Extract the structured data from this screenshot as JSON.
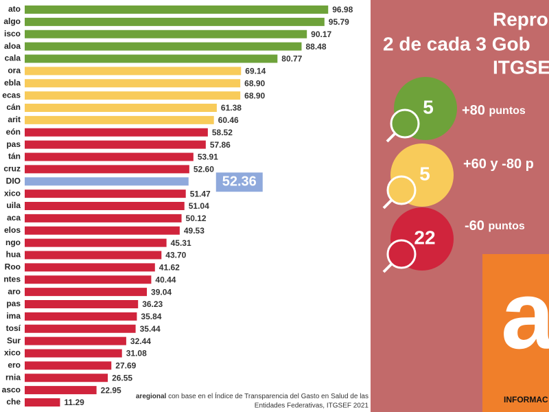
{
  "chart_data": {
    "type": "hbar",
    "categories": [
      "ato",
      "algo",
      "isco",
      "aloa",
      "cala",
      "ora",
      "ebla",
      "ecas",
      "cán",
      "arit",
      "eón",
      "pas",
      "tán",
      "cruz",
      "DIO",
      "xico",
      "uila",
      "aca",
      "elos",
      "ngo",
      "hua",
      "Roo",
      "ntes",
      "aro",
      "pas",
      "ima",
      "tosí",
      "Sur",
      "xico",
      "ero",
      "rnia",
      "asco",
      "che"
    ],
    "values": [
      96.98,
      95.79,
      90.17,
      88.48,
      80.77,
      69.14,
      68.9,
      68.9,
      61.38,
      60.46,
      58.52,
      57.86,
      53.91,
      52.6,
      52.36,
      51.47,
      51.04,
      50.12,
      49.53,
      45.31,
      43.7,
      41.62,
      40.44,
      39.04,
      36.23,
      35.84,
      35.44,
      32.44,
      31.08,
      27.69,
      26.55,
      22.95,
      11.29
    ],
    "value_labels": [
      "96.98",
      "95.79",
      "90.17",
      "88.48",
      "80.77",
      "69.14",
      "68.90",
      "68.90",
      "61.38",
      "60.46",
      "58.52",
      "57.86",
      "53.91",
      "52.60",
      "52.36",
      "51.47",
      "51.04",
      "50.12",
      "49.53",
      "45.31",
      "43.70",
      "41.62",
      "40.44",
      "39.04",
      "36.23",
      "35.84",
      "35.44",
      "32.44",
      "31.08",
      "27.69",
      "26.55",
      "22.95",
      "11.29"
    ],
    "colors": [
      "#6ea23a",
      "#6ea23a",
      "#6ea23a",
      "#6ea23a",
      "#6ea23a",
      "#f8cb5a",
      "#f8cb5a",
      "#f8cb5a",
      "#f8cb5a",
      "#f8cb5a",
      "#d0243c",
      "#d0243c",
      "#d0243c",
      "#d0243c",
      "#8fa9dc",
      "#d0243c",
      "#d0243c",
      "#d0243c",
      "#d0243c",
      "#d0243c",
      "#d0243c",
      "#d0243c",
      "#d0243c",
      "#d0243c",
      "#d0243c",
      "#d0243c",
      "#d0243c",
      "#d0243c",
      "#d0243c",
      "#d0243c",
      "#d0243c",
      "#d0243c",
      "#d0243c"
    ],
    "highlight": 14,
    "source": [
      "aregional",
      "con base en el Índice de Transparencia del Gasto en Salud de las",
      "Entidades Federativas, ITGSEF 2021"
    ]
  },
  "panel": {
    "title": [
      "Repro",
      "2 de cada 3 Gob",
      "ITGSE"
    ],
    "groups": [
      {
        "count": 5,
        "label": "+80",
        "unit": "puntos",
        "color": "#6ea23a"
      },
      {
        "count": 5,
        "label": "+60 y -80 p",
        "color": "#f8cb5a"
      },
      {
        "count": 22,
        "label": "-60",
        "unit": "puntos",
        "color": "#d0243c"
      }
    ],
    "logo": "INFORMAC"
  }
}
